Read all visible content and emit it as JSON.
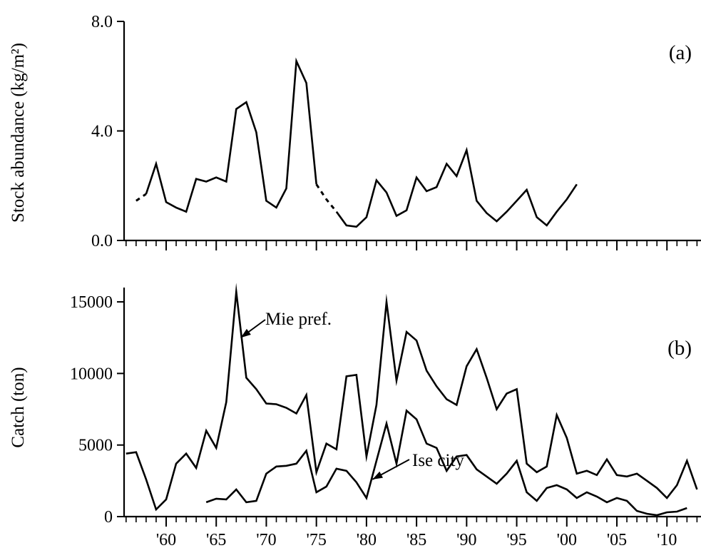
{
  "chart_data": [
    {
      "type": "line",
      "panel_label": "(a)",
      "ylabel": "Stock abundance (kg/m²)",
      "ylim": [
        0,
        8.0
      ],
      "yticks": [
        "0.0",
        "4.0",
        "8.0"
      ],
      "yticks_values": [
        0,
        4,
        8
      ],
      "xlim": [
        1955.8,
        2013.4
      ],
      "x_major_ticks": [
        1960,
        1965,
        1970,
        1975,
        1980,
        1985,
        1990,
        1995,
        2000,
        2005,
        2010
      ],
      "x_tick_labels_shown": false,
      "grid": false,
      "series": [
        {
          "style": "solid",
          "points": [
            [
              1958,
              1.7
            ],
            [
              1959,
              2.8
            ],
            [
              1960,
              1.4
            ],
            [
              1961,
              1.2
            ],
            [
              1962,
              1.05
            ],
            [
              1963,
              2.25
            ],
            [
              1964,
              2.15
            ],
            [
              1965,
              2.3
            ],
            [
              1966,
              2.15
            ],
            [
              1967,
              4.8
            ],
            [
              1968,
              5.05
            ],
            [
              1969,
              3.95
            ],
            [
              1970,
              1.45
            ],
            [
              1971,
              1.2
            ],
            [
              1972,
              1.9
            ],
            [
              1973,
              6.55
            ],
            [
              1974,
              5.75
            ],
            [
              1975,
              2.05
            ]
          ]
        },
        {
          "style": "dashed",
          "points": [
            [
              1957,
              1.45
            ],
            [
              1958,
              1.7
            ]
          ]
        },
        {
          "style": "dashed",
          "points": [
            [
              1975,
              2.05
            ],
            [
              1976,
              1.5
            ],
            [
              1977,
              1.05
            ]
          ]
        },
        {
          "style": "solid",
          "points": [
            [
              1977,
              1.05
            ],
            [
              1978,
              0.55
            ],
            [
              1979,
              0.5
            ],
            [
              1980,
              0.85
            ],
            [
              1981,
              2.2
            ],
            [
              1982,
              1.75
            ],
            [
              1983,
              0.9
            ],
            [
              1984,
              1.1
            ],
            [
              1985,
              2.3
            ],
            [
              1986,
              1.8
            ],
            [
              1987,
              1.95
            ],
            [
              1988,
              2.8
            ],
            [
              1989,
              2.35
            ],
            [
              1990,
              3.3
            ],
            [
              1991,
              1.45
            ],
            [
              1992,
              1.0
            ],
            [
              1993,
              0.7
            ],
            [
              1994,
              1.05
            ],
            [
              1995,
              1.45
            ],
            [
              1996,
              1.85
            ],
            [
              1997,
              0.85
            ],
            [
              1998,
              0.55
            ],
            [
              1999,
              1.05
            ],
            [
              2000,
              1.5
            ],
            [
              2001,
              2.05
            ]
          ]
        }
      ]
    },
    {
      "type": "line",
      "panel_label": "(b)",
      "ylabel": "Catch (ton)",
      "ylim": [
        0,
        16000
      ],
      "yticks": [
        "0",
        "5000",
        "10000",
        "15000"
      ],
      "yticks_values": [
        0,
        5000,
        10000,
        15000
      ],
      "xlim": [
        1955.8,
        2013.4
      ],
      "x_major_ticks": [
        1960,
        1965,
        1970,
        1975,
        1980,
        1985,
        1990,
        1995,
        2000,
        2005,
        2010
      ],
      "x_tick_labels": [
        "'60",
        "'65",
        "'70",
        "'75",
        "'80",
        "'85",
        "'90",
        "'95",
        "'00",
        "'05",
        "'10"
      ],
      "grid": false,
      "annotations": [
        "Mie pref.",
        "Ise city"
      ],
      "series": [
        {
          "name": "Mie pref.",
          "x": [
            1956,
            1957,
            1958,
            1959,
            1960,
            1961,
            1962,
            1963,
            1964,
            1965,
            1966,
            1967,
            1968,
            1969,
            1970,
            1971,
            1972,
            1973,
            1974,
            1975,
            1976,
            1977,
            1978,
            1979,
            1980,
            1981,
            1982,
            1983,
            1984,
            1985,
            1986,
            1987,
            1988,
            1989,
            1990,
            1991,
            1992,
            1993,
            1994,
            1995,
            1996,
            1997,
            1998,
            1999,
            2000,
            2001,
            2002,
            2003,
            2004,
            2005,
            2006,
            2007,
            2008,
            2009,
            2010,
            2011,
            2012,
            2013
          ],
          "values": [
            4400,
            4500,
            2600,
            500,
            1200,
            3700,
            4400,
            3400,
            6000,
            4800,
            8000,
            15700,
            9700,
            8900,
            7900,
            7850,
            7600,
            7200,
            8500,
            3100,
            5100,
            4700,
            9800,
            9900,
            4200,
            7800,
            15000,
            9500,
            12900,
            12300,
            10200,
            9100,
            8200,
            7800,
            10500,
            11700,
            9700,
            7500,
            8600,
            8900,
            3700,
            3100,
            3500,
            7100,
            5500,
            3000,
            3200,
            2900,
            4000,
            2900,
            2800,
            3000,
            2500,
            2000,
            1300,
            2200,
            3900,
            1900
          ]
        },
        {
          "name": "Ise city",
          "x": [
            1964,
            1965,
            1966,
            1967,
            1968,
            1969,
            1970,
            1971,
            1972,
            1973,
            1974,
            1975,
            1976,
            1977,
            1978,
            1979,
            1980,
            1981,
            1982,
            1983,
            1984,
            1985,
            1986,
            1987,
            1988,
            1989,
            1990,
            1991,
            1992,
            1993,
            1994,
            1995,
            1996,
            1997,
            1998,
            1999,
            2000,
            2001,
            2002,
            2003,
            2004,
            2005,
            2006,
            2007,
            2008,
            2009,
            2010,
            2011,
            2012
          ],
          "values": [
            1000,
            1250,
            1200,
            1900,
            1000,
            1100,
            3000,
            3500,
            3550,
            3700,
            4600,
            1700,
            2100,
            3350,
            3200,
            2400,
            1300,
            3900,
            6500,
            3700,
            7400,
            6800,
            5100,
            4800,
            3200,
            4200,
            4300,
            3300,
            2800,
            2300,
            3000,
            3900,
            1700,
            1100,
            2000,
            2200,
            1900,
            1300,
            1700,
            1400,
            1000,
            1300,
            1100,
            400,
            200,
            100,
            300,
            350,
            600
          ]
        }
      ]
    }
  ]
}
